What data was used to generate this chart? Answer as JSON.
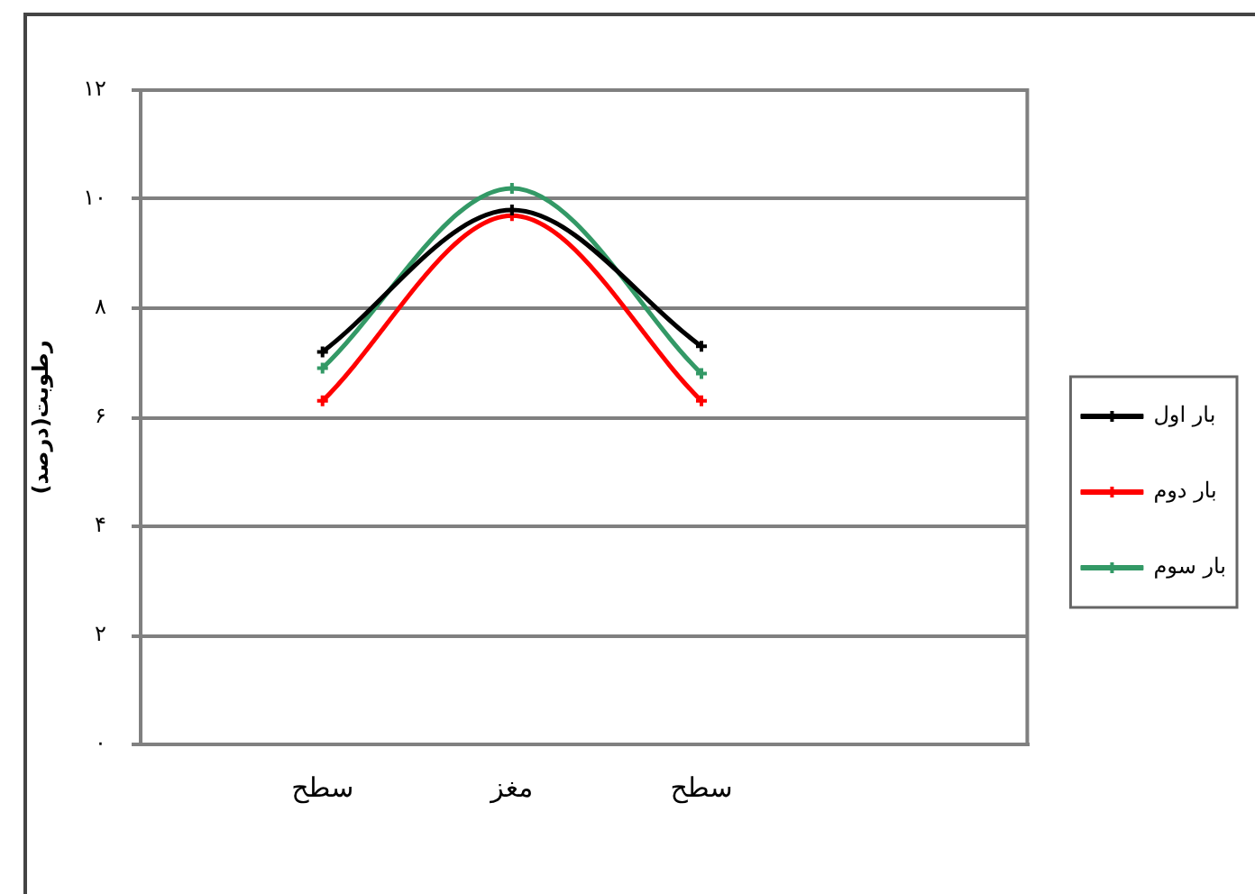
{
  "chart_data": {
    "type": "line",
    "ylabel": "رطوبت(درصد)",
    "categories": [
      "سطح",
      "مغز",
      "سطح"
    ],
    "series": [
      {
        "name": "بار اول",
        "color": "#000000",
        "values": [
          7.2,
          9.8,
          7.3
        ]
      },
      {
        "name": "بار دوم",
        "color": "#ff0000",
        "values": [
          6.3,
          9.7,
          6.3
        ]
      },
      {
        "name": "بار سوم",
        "color": "#339966",
        "values": [
          6.9,
          10.2,
          6.8
        ]
      }
    ],
    "ylim": [
      0,
      12
    ],
    "yticks": [
      {
        "value": 0,
        "label": "۰"
      },
      {
        "value": 2,
        "label": "۲"
      },
      {
        "value": 4,
        "label": "۴"
      },
      {
        "value": 6,
        "label": "۶"
      },
      {
        "value": 8,
        "label": "۸"
      },
      {
        "value": 10,
        "label": "۱۰"
      },
      {
        "value": 12,
        "label": "۱۲"
      }
    ],
    "grid": "y",
    "legend": "right",
    "marker": "cross"
  }
}
